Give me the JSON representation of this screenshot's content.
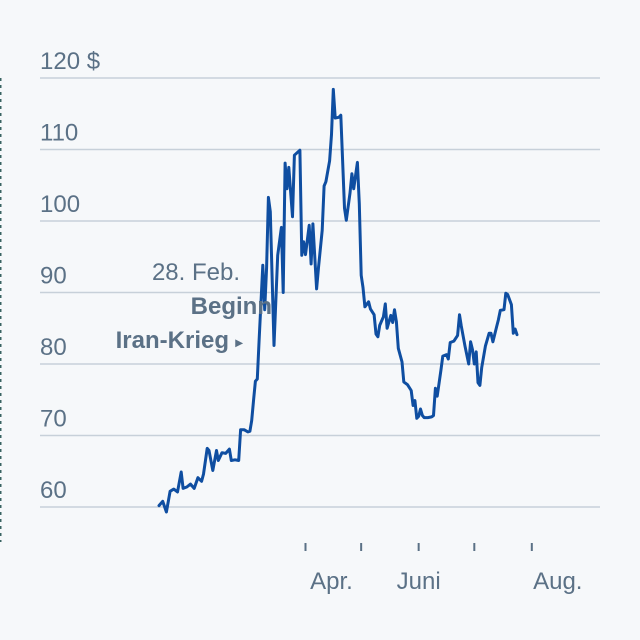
{
  "chart_data": {
    "type": "line",
    "title": "",
    "unit": "$",
    "ylim": [
      55,
      123
    ],
    "y_ticks": [
      60,
      70,
      80,
      90,
      100,
      110,
      120
    ],
    "y_tick_labels": [
      "60",
      "70",
      "80",
      "90",
      "100",
      "110",
      "120 $"
    ],
    "x_axis_ticks": [
      "Apr. 1",
      "Mai 1",
      "Juni 1",
      "Juli 1",
      "Aug. 1"
    ],
    "x_labels": [
      {
        "label": "Apr.",
        "at": "Apr. 15"
      },
      {
        "label": "Juni",
        "at": "Juni 1"
      },
      {
        "label": "Aug.",
        "at": "Aug. 15"
      }
    ],
    "grid": true,
    "color": "#0f4ea1",
    "annotation": {
      "date": "28. Feb.",
      "label_line1": "28. Feb.",
      "label_line2": "Beginn",
      "label_line3": "Iran-Krieg",
      "arrow": "▸"
    },
    "series": [
      {
        "values": [
          [
            "Jan. 12",
            60.2
          ],
          [
            "Jan. 14",
            60.8
          ],
          [
            "Jan. 16",
            59.3
          ],
          [
            "Jan. 18",
            62.2
          ],
          [
            "Jan. 20",
            62.5
          ],
          [
            "Jan. 22",
            62.1
          ],
          [
            "Jan. 24",
            64.9
          ],
          [
            "Jan. 25",
            62.6
          ],
          [
            "Jan. 27",
            62.8
          ],
          [
            "Jan. 29",
            63.2
          ],
          [
            "Jan. 31",
            62.6
          ],
          [
            "Feb. 2",
            64.1
          ],
          [
            "Feb. 4",
            63.6
          ],
          [
            "Feb. 5",
            64.6
          ],
          [
            "Feb. 7",
            68.2
          ],
          [
            "Feb. 8",
            67.9
          ],
          [
            "Feb. 10",
            65.1
          ],
          [
            "Feb. 12",
            67.9
          ],
          [
            "Feb. 13",
            66.5
          ],
          [
            "Feb. 15",
            67.6
          ],
          [
            "Feb. 17",
            67.5
          ],
          [
            "Feb. 19",
            68.1
          ],
          [
            "Feb. 20",
            66.5
          ],
          [
            "Feb. 22",
            66.6
          ],
          [
            "Feb. 24",
            66.5
          ],
          [
            "Feb. 25",
            70.8
          ],
          [
            "Feb. 27",
            70.8
          ],
          [
            "Mär. 1",
            70.5
          ],
          [
            "Mär. 2",
            70.6
          ],
          [
            "Mär. 3",
            72.1
          ],
          [
            "Mär. 4",
            75.0
          ],
          [
            "Mär. 5",
            77.6
          ],
          [
            "Mär. 6",
            77.9
          ],
          [
            "Mär. 7",
            83.3
          ],
          [
            "Mär. 9",
            93.8
          ],
          [
            "Mär. 10",
            87.6
          ],
          [
            "Mär. 11",
            93.5
          ],
          [
            "Mär. 12",
            103.3
          ],
          [
            "Mär. 13",
            101.3
          ],
          [
            "Mär. 15",
            82.6
          ],
          [
            "Mär. 17",
            95.2
          ],
          [
            "Mär. 19",
            99.1
          ],
          [
            "Mär. 20",
            90.0
          ],
          [
            "Mär. 21",
            108.1
          ],
          [
            "Mär. 22",
            104.5
          ],
          [
            "Mär. 23",
            107.5
          ],
          [
            "Mär. 25",
            100.6
          ],
          [
            "Mär. 26",
            109.2
          ],
          [
            "Mär. 29",
            109.9
          ],
          [
            "Mär. 30",
            95.2
          ],
          [
            "Mär. 31",
            97.1
          ],
          [
            "Apr. 1",
            95.3
          ],
          [
            "Apr. 3",
            99.4
          ],
          [
            "Apr. 4",
            94.0
          ],
          [
            "Apr. 5",
            99.6
          ],
          [
            "Apr. 7",
            90.5
          ],
          [
            "Apr. 8",
            93.5
          ],
          [
            "Apr. 10",
            98.7
          ],
          [
            "Apr. 11",
            104.9
          ],
          [
            "Apr. 12",
            105.5
          ],
          [
            "Apr. 14",
            108.4
          ],
          [
            "Apr. 15",
            112.1
          ],
          [
            "Apr. 16",
            118.4
          ],
          [
            "Apr. 17",
            114.4
          ],
          [
            "Apr. 19",
            114.5
          ],
          [
            "Apr. 20",
            114.8
          ],
          [
            "Apr. 22",
            101.8
          ],
          [
            "Apr. 23",
            100.1
          ],
          [
            "Apr. 25",
            103.9
          ],
          [
            "Apr. 26",
            106.6
          ],
          [
            "Apr. 27",
            104.5
          ],
          [
            "Apr. 29",
            108.2
          ],
          [
            "Apr. 30",
            102.4
          ],
          [
            "Mai 1",
            92.4
          ],
          [
            "Mai 2",
            90.7
          ],
          [
            "Mai 3",
            88.0
          ],
          [
            "Mai 5",
            88.7
          ],
          [
            "Mai 6",
            87.7
          ],
          [
            "Mai 8",
            86.9
          ],
          [
            "Mai 9",
            84.2
          ],
          [
            "Mai 10",
            83.8
          ],
          [
            "Mai 11",
            85.4
          ],
          [
            "Mai 13",
            86.6
          ],
          [
            "Mai 14",
            88.4
          ],
          [
            "Mai 15",
            85.0
          ],
          [
            "Mai 17",
            86.8
          ],
          [
            "Mai 18",
            85.8
          ],
          [
            "Mai 19",
            87.6
          ],
          [
            "Mai 20",
            85.9
          ],
          [
            "Mai 21",
            82.2
          ],
          [
            "Mai 23",
            80.3
          ],
          [
            "Mai 24",
            77.5
          ],
          [
            "Mai 26",
            77.1
          ],
          [
            "Mai 28",
            76.3
          ],
          [
            "Mai 29",
            74.2
          ],
          [
            "Mai 30",
            74.9
          ],
          [
            "Mai 31",
            72.4
          ],
          [
            "Juni 1",
            72.7
          ],
          [
            "Juni 2",
            73.7
          ],
          [
            "Juni 3",
            72.8
          ],
          [
            "Juni 4",
            72.5
          ],
          [
            "Juni 6",
            72.5
          ],
          [
            "Juni 8",
            72.6
          ],
          [
            "Juni 9",
            72.8
          ],
          [
            "Juni 10",
            76.6
          ],
          [
            "Juni 11",
            75.5
          ],
          [
            "Juni 13",
            79.1
          ],
          [
            "Juni 14",
            81.1
          ],
          [
            "Juni 16",
            81.3
          ],
          [
            "Juni 17",
            80.7
          ],
          [
            "Juni 18",
            83.0
          ],
          [
            "Juni 20",
            83.2
          ],
          [
            "Juni 22",
            84.0
          ],
          [
            "Juni 23",
            86.9
          ],
          [
            "Juni 24",
            85.3
          ],
          [
            "Juni 26",
            82.5
          ],
          [
            "Juni 28",
            80.0
          ],
          [
            "Juni 29",
            83.1
          ],
          [
            "Juni 30",
            82.0
          ],
          [
            "Juli 1",
            80.0
          ],
          [
            "Juli 2",
            81.7
          ],
          [
            "Juli 3",
            77.4
          ],
          [
            "Juli 4",
            77.0
          ],
          [
            "Juli 5",
            79.5
          ],
          [
            "Juli 7",
            82.5
          ],
          [
            "Juli 9",
            84.3
          ],
          [
            "Juli 10",
            84.3
          ],
          [
            "Juli 11",
            83.1
          ],
          [
            "Juli 13",
            85.2
          ],
          [
            "Juli 14",
            86.2
          ],
          [
            "Juli 15",
            87.5
          ],
          [
            "Juli 17",
            87.6
          ],
          [
            "Juli 18",
            89.9
          ],
          [
            "Juli 19",
            89.7
          ],
          [
            "Juli 21",
            88.3
          ],
          [
            "Juli 22",
            84.3
          ],
          [
            "Juli 23",
            84.9
          ],
          [
            "Juli 24",
            84.1
          ]
        ]
      }
    ]
  }
}
